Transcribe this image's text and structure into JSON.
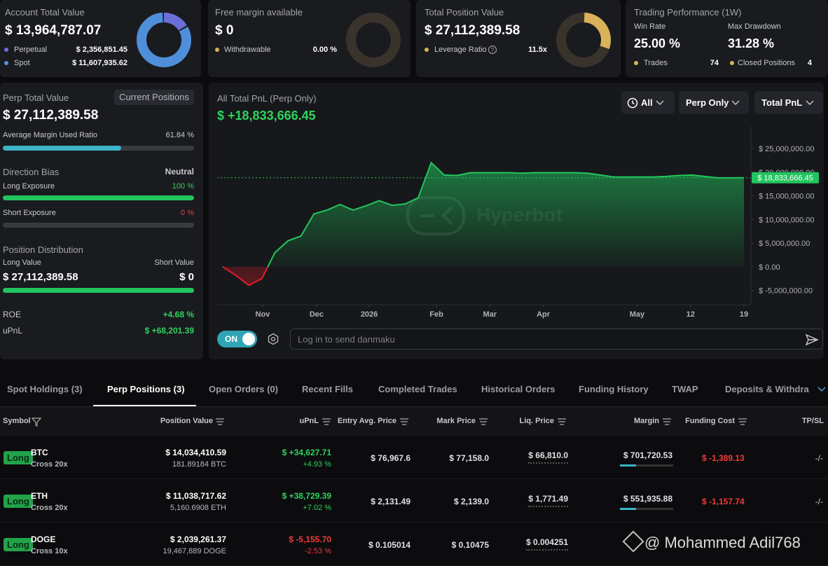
{
  "account": {
    "title": "Account Total Value",
    "total": "$ 13,964,787.07",
    "perpetual": {
      "name": "Perpetual",
      "amount": {
        "value": 2356851.45,
        "label": "$ 2,356,851.45"
      }
    },
    "spot": {
      "name": "Spot",
      "amount": {
        "value": 11607935.62,
        "label": "$ 11,607,935.62"
      }
    }
  },
  "free_margin": {
    "title": "Free margin available",
    "total": "$ 0",
    "withdrawable": {
      "name": "Withdrawable",
      "value": "0.00 %"
    }
  },
  "position": {
    "title": "Total Position Value",
    "total": "$ 27,112,389.58",
    "leverage": {
      "name": "Leverage Ratio",
      "value": "11.5x"
    }
  },
  "performance": {
    "title": "Trading Performance (1W)",
    "win_rate": {
      "name": "Win Rate",
      "value": "25.00 %"
    },
    "max_drawdown": {
      "name": "Max Drawdown",
      "value": "31.28 %"
    },
    "trades": {
      "name": "Trades",
      "value": "74"
    },
    "closed_positions": {
      "name": "Closed Positions",
      "value": "4"
    }
  },
  "overview": {
    "title": "Perp Total Value",
    "total": "$ 27,112,389.58",
    "button": "Current Positions",
    "margin_ratio": {
      "name": "Average Margin Used Ratio",
      "value": {
        "value": 61.84,
        "label": "61.84 %"
      }
    },
    "direction": {
      "title": "Direction Bias",
      "value": "Neutral"
    },
    "long_exposure": {
      "name": "Long Exposure",
      "value": {
        "value": 100,
        "label": "100 %"
      }
    },
    "short_exposure": {
      "name": "Short Exposure",
      "value": {
        "value": 0,
        "label": "0 %"
      }
    },
    "distribution": {
      "title": "Position Distribution",
      "long": {
        "name": "Long Value",
        "value": {
          "value": 27112389.58,
          "label": "$ 27,112,389.58"
        }
      },
      "short": {
        "name": "Short Value",
        "value": {
          "value": 0,
          "label": "$ 0"
        }
      }
    },
    "roe": {
      "name": "ROE",
      "value": "+4.68 %"
    },
    "upnl": {
      "name": "uPnL",
      "value": "$ +68,201.39"
    }
  },
  "chart_data": {
    "type": "area",
    "title": "All Total PnL (Perp Only)",
    "subtitle": "$ +18,833,666.45",
    "filters": [
      "All",
      "Perp Only",
      "Total PnL"
    ],
    "watermark": "Hyperbot",
    "x": [
      0,
      1,
      2,
      3,
      4,
      5,
      6,
      7,
      8,
      9,
      10,
      11,
      12,
      13,
      14,
      15,
      16,
      17,
      18,
      19,
      20,
      21,
      22,
      23,
      24,
      25,
      26,
      27,
      28,
      29,
      30,
      31,
      32,
      33,
      34,
      35,
      36,
      37,
      38,
      39,
      40
    ],
    "values": [
      0,
      -1800000,
      -3900000,
      -2500000,
      3000000,
      5500000,
      6500000,
      11200000,
      12000000,
      13200000,
      12000000,
      12900000,
      14000000,
      13000000,
      13300000,
      14600000,
      22000000,
      19400000,
      19300000,
      19900000,
      19900000,
      19900000,
      19900000,
      19800000,
      19900000,
      19900000,
      19900000,
      19900000,
      19800000,
      19400000,
      19000000,
      19000000,
      19000000,
      19000000,
      19100000,
      19300000,
      19400000,
      19100000,
      18800000,
      18800000,
      18833666.45
    ],
    "last_value_label": "$ 18,833,666.45",
    "color": "#22c55e",
    "negative_color": "#e11d2a",
    "xlim": [
      0,
      40
    ],
    "xticks": [
      {
        "value": 3.06,
        "label": "Nov"
      },
      {
        "value": 7.2,
        "label": "Dec"
      },
      {
        "value": 11.24,
        "label": "2026"
      },
      {
        "value": 16.4,
        "label": "Feb"
      },
      {
        "value": 20.5,
        "label": "Mar"
      },
      {
        "value": 24.6,
        "label": "Apr"
      },
      {
        "value": 31.8,
        "label": "May"
      },
      {
        "value": 35.9,
        "label": "12"
      },
      {
        "value": 40,
        "label": "19"
      }
    ],
    "ylim": [
      -8000000,
      29000000
    ],
    "yticks": [
      {
        "value": 25000000,
        "label": "$ 25,000,000.00"
      },
      {
        "value": 20000000,
        "label": "$ 20,000,000.00"
      },
      {
        "value": 15000000,
        "label": "$ 15,000,000.00"
      },
      {
        "value": 10000000,
        "label": "$ 10,000,000.00"
      },
      {
        "value": 5000000,
        "label": "$ 5,000,000.00"
      },
      {
        "value": 0,
        "label": "$ 0.00"
      },
      {
        "value": -5000000,
        "label": "$ -5,000,000.00"
      }
    ],
    "grid": false
  },
  "danmaku": {
    "toggle": "ON",
    "placeholder": "Log in to send danmaku"
  },
  "tabs": [
    "Spot Holdings (3)",
    "Perp Positions (3)",
    "Open Orders (0)",
    "Recent Fills",
    "Completed Trades",
    "Historical Orders",
    "Funding History",
    "TWAP",
    "Deposits & Withdraw"
  ],
  "active_tab": 1,
  "table": {
    "columns": [
      "Symbol",
      "Position Value",
      "uPnL",
      "Entry Avg. Price",
      "Mark Price",
      "Liq. Price",
      "Margin",
      "Funding Cost",
      "TP/SL"
    ],
    "rows": [
      {
        "side": "Long",
        "symbol": "BTC",
        "mode": "Cross 20x",
        "position_value": "$ 14,034,410.59",
        "size": "181.89184 BTC",
        "upnl": "$ +34,627.71",
        "upnl_pct": "+4.93 %",
        "entry": "$ 76,967.6",
        "mark": "$ 77,158.0",
        "liq": "$ 66,810.0",
        "margin": "$ 701,720.53",
        "funding": "$ -1,389.13",
        "tpsl": "-/-"
      },
      {
        "side": "Long",
        "symbol": "ETH",
        "mode": "Cross 20x",
        "position_value": "$ 11,038,717.62",
        "size": "5,160.6908 ETH",
        "upnl": "$ +38,729.39",
        "upnl_pct": "+7.02 %",
        "entry": "$ 2,131.49",
        "mark": "$ 2,139.0",
        "liq": "$ 1,771.49",
        "margin": "$ 551,935.88",
        "funding": "$ -1,157.74",
        "tpsl": "-/-"
      },
      {
        "side": "Long",
        "symbol": "DOGE",
        "mode": "Cross 10x",
        "position_value": "$ 2,039,261.37",
        "size": "19,467,889 DOGE",
        "upnl": "$ -5,155.70",
        "upnl_pct": "-2.53 %",
        "entry": "$ 0.105014",
        "mark": "$ 0.10475",
        "liq": "$ 0.004251"
      }
    ]
  },
  "watermark": "@ Mohammed Adil768"
}
